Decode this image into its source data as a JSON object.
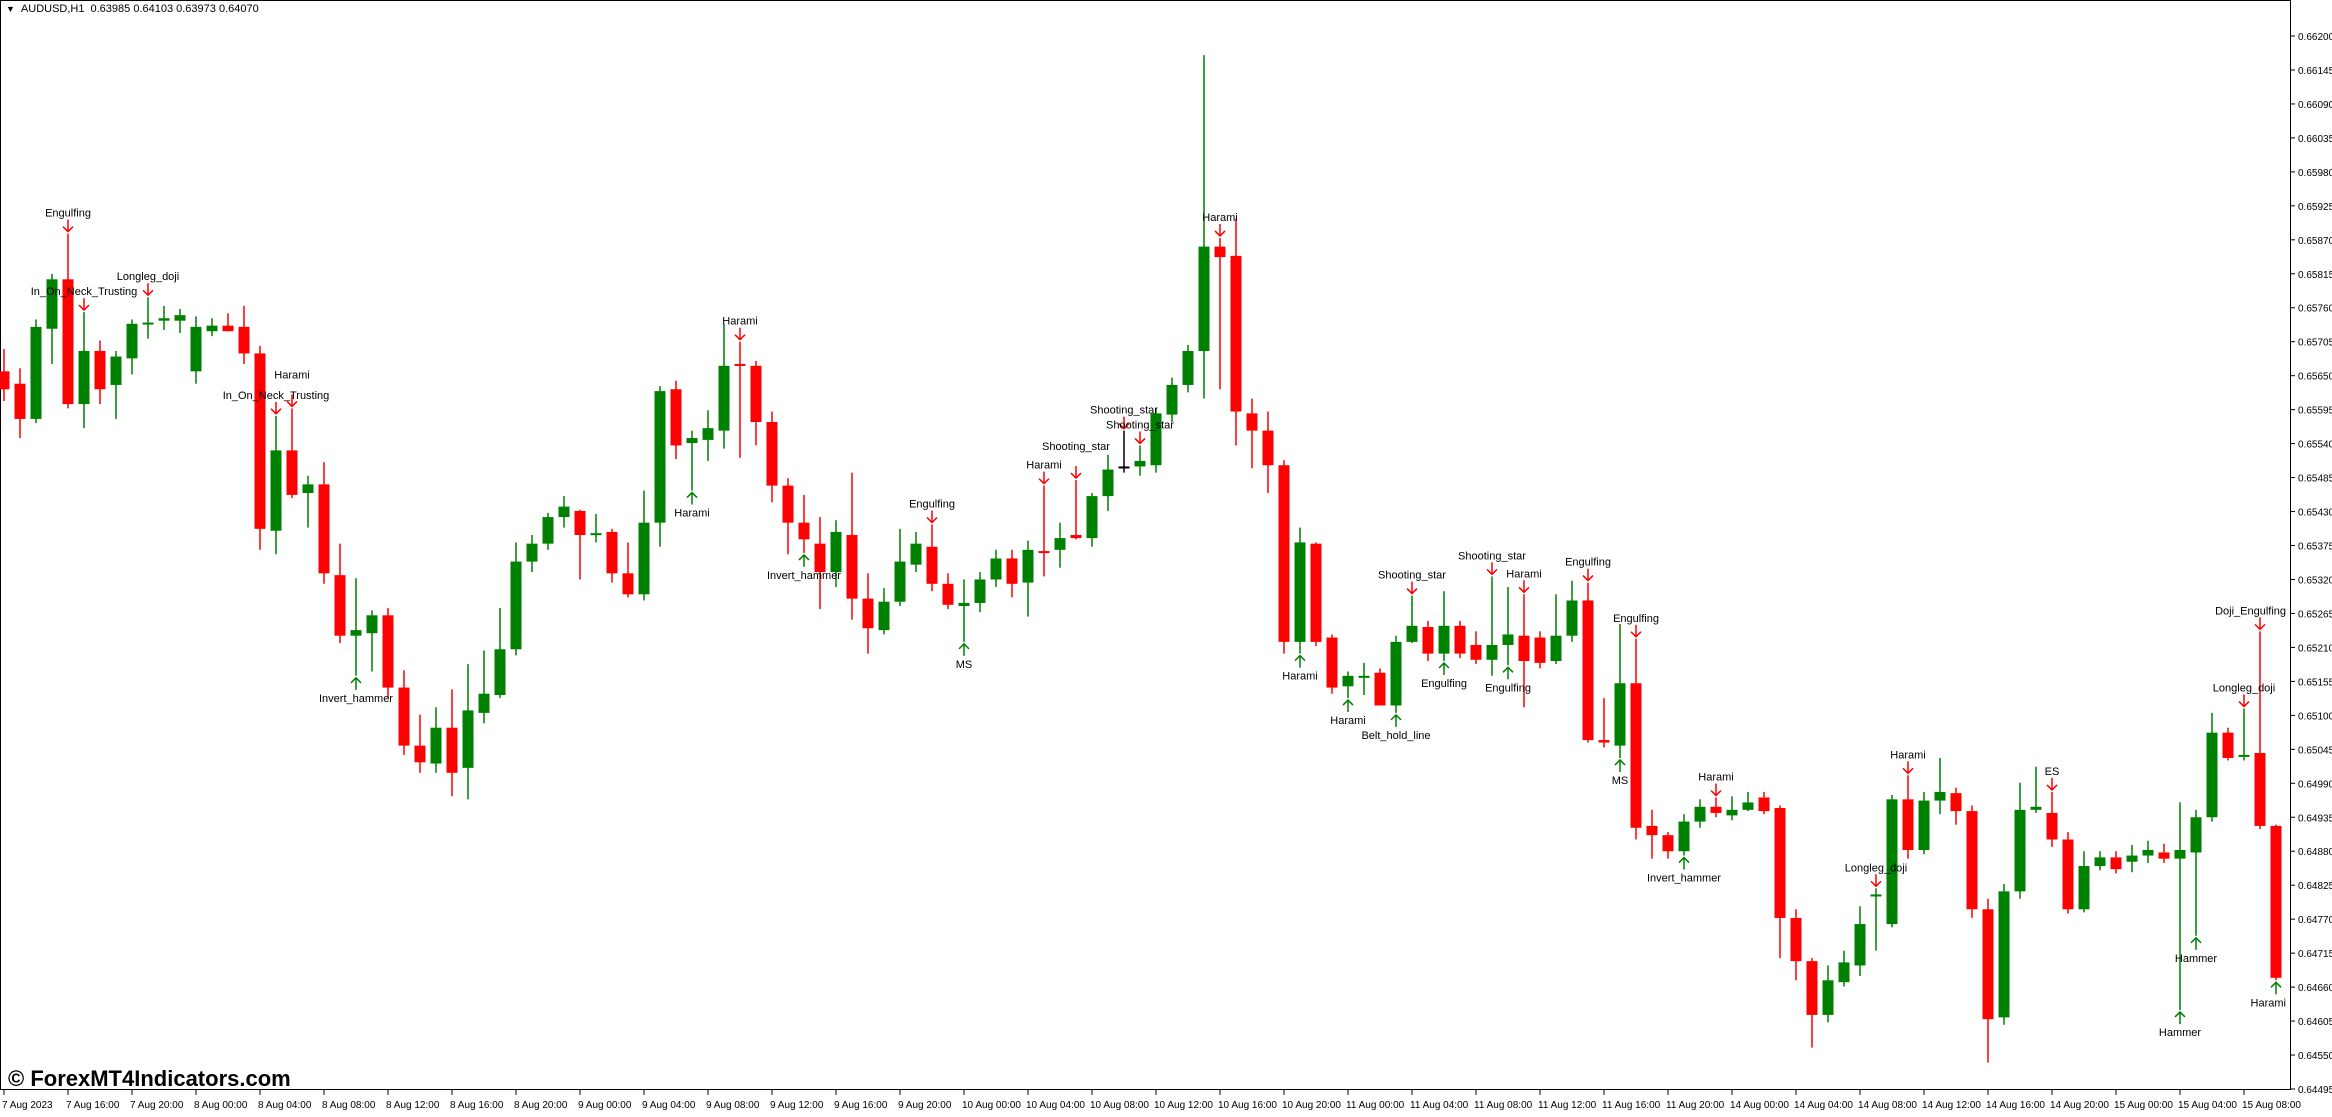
{
  "header": {
    "symbol": "AUDUSD,H1",
    "ohlc": "0.63985 0.64103 0.63973 0.64070",
    "icon": "triangle-down-icon"
  },
  "watermark": "© ForexMT4Indicators.com",
  "colors": {
    "bull": "#008000",
    "bear": "#ff0000",
    "doji": "#000000",
    "axis": "#000000",
    "text": "#000000"
  },
  "chart_data": {
    "type": "candlestick",
    "title": "AUDUSD,H1",
    "ylim": [
      0.64495,
      0.662
    ],
    "grid": false,
    "y_ticks": [
      "0.66200",
      "0.66145",
      "0.66090",
      "0.66035",
      "0.65980",
      "0.65925",
      "0.65870",
      "0.65815",
      "0.65760",
      "0.65705",
      "0.65650",
      "0.65595",
      "0.65540",
      "0.65485",
      "0.65430",
      "0.65375",
      "0.65320",
      "0.65265",
      "0.65210",
      "0.65155",
      "0.65100",
      "0.65045",
      "0.64990",
      "0.64935",
      "0.64880",
      "0.64825",
      "0.64770",
      "0.64715",
      "0.64660",
      "0.64605",
      "0.64550",
      "0.64495"
    ],
    "x_ticks": [
      {
        "bar": 0,
        "label": "7 Aug 2023"
      },
      {
        "bar": 4,
        "label": "7 Aug 16:00"
      },
      {
        "bar": 8,
        "label": "7 Aug 20:00"
      },
      {
        "bar": 12,
        "label": "8 Aug 00:00"
      },
      {
        "bar": 16,
        "label": "8 Aug 04:00"
      },
      {
        "bar": 20,
        "label": "8 Aug 08:00"
      },
      {
        "bar": 24,
        "label": "8 Aug 12:00"
      },
      {
        "bar": 28,
        "label": "8 Aug 16:00"
      },
      {
        "bar": 32,
        "label": "8 Aug 20:00"
      },
      {
        "bar": 36,
        "label": "9 Aug 00:00"
      },
      {
        "bar": 40,
        "label": "9 Aug 04:00"
      },
      {
        "bar": 44,
        "label": "9 Aug 08:00"
      },
      {
        "bar": 48,
        "label": "9 Aug 12:00"
      },
      {
        "bar": 52,
        "label": "9 Aug 16:00"
      },
      {
        "bar": 56,
        "label": "9 Aug 20:00"
      },
      {
        "bar": 60,
        "label": "10 Aug 00:00"
      },
      {
        "bar": 64,
        "label": "10 Aug 04:00"
      },
      {
        "bar": 68,
        "label": "10 Aug 08:00"
      },
      {
        "bar": 72,
        "label": "10 Aug 12:00"
      },
      {
        "bar": 76,
        "label": "10 Aug 16:00"
      },
      {
        "bar": 80,
        "label": "10 Aug 20:00"
      },
      {
        "bar": 84,
        "label": "11 Aug 00:00"
      },
      {
        "bar": 88,
        "label": "11 Aug 04:00"
      },
      {
        "bar": 92,
        "label": "11 Aug 08:00"
      },
      {
        "bar": 96,
        "label": "11 Aug 12:00"
      },
      {
        "bar": 100,
        "label": "11 Aug 16:00"
      },
      {
        "bar": 104,
        "label": "11 Aug 20:00"
      },
      {
        "bar": 108,
        "label": "14 Aug 00:00"
      },
      {
        "bar": 112,
        "label": "14 Aug 04:00"
      },
      {
        "bar": 116,
        "label": "14 Aug 08:00"
      },
      {
        "bar": 120,
        "label": "14 Aug 12:00"
      },
      {
        "bar": 124,
        "label": "14 Aug 16:00"
      },
      {
        "bar": 128,
        "label": "14 Aug 20:00"
      },
      {
        "bar": 132,
        "label": "15 Aug 00:00"
      },
      {
        "bar": 136,
        "label": "15 Aug 04:00"
      },
      {
        "bar": 140,
        "label": "15 Aug 08:00"
      }
    ],
    "candles": [
      [
        0.65657,
        0.65693,
        0.65609,
        0.65628
      ],
      [
        0.65637,
        0.65662,
        0.65549,
        0.6558
      ],
      [
        0.6558,
        0.65741,
        0.65573,
        0.65729
      ],
      [
        0.65726,
        0.65815,
        0.65669,
        0.65806
      ],
      [
        0.65806,
        0.6588,
        0.65597,
        0.65604
      ],
      [
        0.65604,
        0.65753,
        0.65565,
        0.6569
      ],
      [
        0.6569,
        0.65707,
        0.65604,
        0.65628
      ],
      [
        0.65635,
        0.6569,
        0.6558,
        0.65681
      ],
      [
        0.65678,
        0.65741,
        0.65652,
        0.65734
      ],
      [
        0.65736,
        0.65777,
        0.6571,
        0.65736
      ],
      [
        0.65739,
        0.65763,
        0.65724,
        0.65743
      ],
      [
        0.65739,
        0.65758,
        0.65719,
        0.65748
      ],
      [
        0.65657,
        0.65746,
        0.65637,
        0.65729
      ],
      [
        0.65722,
        0.65743,
        0.65714,
        0.65731
      ],
      [
        0.65731,
        0.65751,
        0.65722,
        0.65722
      ],
      [
        0.65729,
        0.65763,
        0.65669,
        0.65686
      ],
      [
        0.65686,
        0.65698,
        0.65368,
        0.65402
      ],
      [
        0.65399,
        0.65585,
        0.65361,
        0.65529
      ],
      [
        0.65529,
        0.65597,
        0.65452,
        0.65457
      ],
      [
        0.6546,
        0.65488,
        0.65404,
        0.65474
      ],
      [
        0.65474,
        0.6551,
        0.65313,
        0.6533
      ],
      [
        0.65327,
        0.65378,
        0.65217,
        0.65229
      ],
      [
        0.65229,
        0.65322,
        0.65164,
        0.65238
      ],
      [
        0.65233,
        0.6527,
        0.65171,
        0.65262
      ],
      [
        0.65262,
        0.65274,
        0.65128,
        0.65145
      ],
      [
        0.65145,
        0.65173,
        0.65036,
        0.65051
      ],
      [
        0.65051,
        0.65101,
        0.65007,
        0.65024
      ],
      [
        0.65022,
        0.65113,
        0.65007,
        0.6508
      ],
      [
        0.6508,
        0.65142,
        0.64969,
        0.65007
      ],
      [
        0.65015,
        0.65183,
        0.64964,
        0.65108
      ],
      [
        0.65104,
        0.65205,
        0.65087,
        0.65135
      ],
      [
        0.65133,
        0.65274,
        0.65128,
        0.65207
      ],
      [
        0.65207,
        0.6538,
        0.65197,
        0.65349
      ],
      [
        0.65349,
        0.65392,
        0.65332,
        0.65378
      ],
      [
        0.65378,
        0.65428,
        0.65368,
        0.65421
      ],
      [
        0.65421,
        0.65455,
        0.65404,
        0.65438
      ],
      [
        0.65431,
        0.65433,
        0.6532,
        0.65392
      ],
      [
        0.65392,
        0.65426,
        0.6538,
        0.65395
      ],
      [
        0.65397,
        0.65402,
        0.65315,
        0.6533
      ],
      [
        0.6533,
        0.6538,
        0.65291,
        0.65296
      ],
      [
        0.65296,
        0.65464,
        0.65286,
        0.65412
      ],
      [
        0.65412,
        0.65633,
        0.65373,
        0.65625
      ],
      [
        0.65628,
        0.65642,
        0.65515,
        0.65537
      ],
      [
        0.65541,
        0.65561,
        0.65464,
        0.65549
      ],
      [
        0.65546,
        0.65594,
        0.65512,
        0.65565
      ],
      [
        0.65561,
        0.65734,
        0.65532,
        0.65666
      ],
      [
        0.65669,
        0.65705,
        0.65517,
        0.65666
      ],
      [
        0.65666,
        0.65674,
        0.65537,
        0.65575
      ],
      [
        0.65575,
        0.65592,
        0.65445,
        0.65472
      ],
      [
        0.65472,
        0.65484,
        0.65361,
        0.65412
      ],
      [
        0.65412,
        0.65457,
        0.65363,
        0.65385
      ],
      [
        0.65378,
        0.65421,
        0.65272,
        0.65332
      ],
      [
        0.65332,
        0.65416,
        0.65308,
        0.65397
      ],
      [
        0.65392,
        0.65493,
        0.65255,
        0.65289
      ],
      [
        0.65289,
        0.6533,
        0.652,
        0.65241
      ],
      [
        0.65238,
        0.65306,
        0.65231,
        0.65284
      ],
      [
        0.65284,
        0.65402,
        0.65277,
        0.65349
      ],
      [
        0.65344,
        0.65397,
        0.65332,
        0.65378
      ],
      [
        0.65373,
        0.65409,
        0.65301,
        0.65313
      ],
      [
        0.65313,
        0.6533,
        0.65272,
        0.65279
      ],
      [
        0.65277,
        0.6532,
        0.65219,
        0.65282
      ],
      [
        0.65282,
        0.65332,
        0.65267,
        0.6532
      ],
      [
        0.6532,
        0.65368,
        0.65308,
        0.65354
      ],
      [
        0.65354,
        0.65368,
        0.65291,
        0.65313
      ],
      [
        0.65315,
        0.65383,
        0.6526,
        0.65368
      ],
      [
        0.65366,
        0.65472,
        0.65325,
        0.65363
      ],
      [
        0.65368,
        0.65412,
        0.65339,
        0.65387
      ],
      [
        0.65392,
        0.65481,
        0.65385,
        0.65387
      ],
      [
        0.65387,
        0.6546,
        0.65373,
        0.65455
      ],
      [
        0.65455,
        0.65522,
        0.65431,
        0.65498
      ],
      [
        0.65503,
        0.65561,
        0.65493,
        0.65503
      ],
      [
        0.65503,
        0.65537,
        0.65488,
        0.65512
      ],
      [
        0.65505,
        0.65597,
        0.65493,
        0.65589
      ],
      [
        0.65587,
        0.65647,
        0.65575,
        0.65635
      ],
      [
        0.65635,
        0.657,
        0.65623,
        0.6569
      ],
      [
        0.6569,
        0.66169,
        0.65613,
        0.65859
      ],
      [
        0.65859,
        0.65873,
        0.65628,
        0.65842
      ],
      [
        0.65844,
        0.65904,
        0.65537,
        0.65592
      ],
      [
        0.65589,
        0.65613,
        0.655,
        0.65561
      ],
      [
        0.65561,
        0.65592,
        0.6546,
        0.65505
      ],
      [
        0.65505,
        0.65513,
        0.652,
        0.65219
      ],
      [
        0.65219,
        0.65404,
        0.652,
        0.6538
      ],
      [
        0.65378,
        0.6538,
        0.65212,
        0.65219
      ],
      [
        0.65226,
        0.65231,
        0.65135,
        0.65145
      ],
      [
        0.65147,
        0.65171,
        0.65128,
        0.65164
      ],
      [
        0.65164,
        0.65185,
        0.65133,
        0.65164
      ],
      [
        0.65169,
        0.65176,
        0.65116,
        0.65116
      ],
      [
        0.65116,
        0.65229,
        0.65104,
        0.65219
      ],
      [
        0.65219,
        0.65294,
        0.65217,
        0.65245
      ],
      [
        0.65243,
        0.65253,
        0.65188,
        0.652
      ],
      [
        0.652,
        0.65301,
        0.65188,
        0.65245
      ],
      [
        0.65245,
        0.65253,
        0.65193,
        0.652
      ],
      [
        0.65214,
        0.65236,
        0.65183,
        0.6519
      ],
      [
        0.6519,
        0.65325,
        0.65164,
        0.65214
      ],
      [
        0.65214,
        0.65308,
        0.65181,
        0.65231
      ],
      [
        0.65229,
        0.65296,
        0.65113,
        0.65188
      ],
      [
        0.65226,
        0.65236,
        0.65176,
        0.65185
      ],
      [
        0.65188,
        0.65296,
        0.65183,
        0.65229
      ],
      [
        0.65229,
        0.65318,
        0.65219,
        0.65286
      ],
      [
        0.65286,
        0.65315,
        0.65056,
        0.6506
      ],
      [
        0.6506,
        0.65128,
        0.65048,
        0.65056
      ],
      [
        0.65051,
        0.65248,
        0.65031,
        0.65152
      ],
      [
        0.65152,
        0.65224,
        0.64899,
        0.64918
      ],
      [
        0.64921,
        0.64947,
        0.64868,
        0.64906
      ],
      [
        0.64906,
        0.64911,
        0.64868,
        0.6488
      ],
      [
        0.6488,
        0.6494,
        0.64873,
        0.64928
      ],
      [
        0.64928,
        0.64964,
        0.64918,
        0.64952
      ],
      [
        0.64952,
        0.64967,
        0.64935,
        0.64942
      ],
      [
        0.64938,
        0.64969,
        0.6493,
        0.64947
      ],
      [
        0.64947,
        0.64976,
        0.64945,
        0.64959
      ],
      [
        0.64967,
        0.64976,
        0.6494,
        0.64945
      ],
      [
        0.6495,
        0.64954,
        0.64707,
        0.64772
      ],
      [
        0.64772,
        0.64786,
        0.64671,
        0.64702
      ],
      [
        0.64702,
        0.64707,
        0.64562,
        0.64615
      ],
      [
        0.64615,
        0.64695,
        0.64603,
        0.64671
      ],
      [
        0.64668,
        0.64719,
        0.64661,
        0.647
      ],
      [
        0.64695,
        0.64791,
        0.64678,
        0.64762
      ],
      [
        0.6481,
        0.6482,
        0.64719,
        0.6481
      ],
      [
        0.64762,
        0.64971,
        0.64757,
        0.64964
      ],
      [
        0.64964,
        0.65003,
        0.64868,
        0.64882
      ],
      [
        0.64882,
        0.64976,
        0.64875,
        0.64962
      ],
      [
        0.64962,
        0.65031,
        0.6494,
        0.64976
      ],
      [
        0.64974,
        0.64983,
        0.64923,
        0.64945
      ],
      [
        0.64945,
        0.64954,
        0.64772,
        0.64786
      ],
      [
        0.64786,
        0.64803,
        0.64538,
        0.64608
      ],
      [
        0.64611,
        0.64827,
        0.64599,
        0.64815
      ],
      [
        0.64815,
        0.64991,
        0.64803,
        0.64947
      ],
      [
        0.64947,
        0.65017,
        0.64942,
        0.64952
      ],
      [
        0.64942,
        0.64976,
        0.64887,
        0.64899
      ],
      [
        0.64899,
        0.64911,
        0.64779,
        0.64786
      ],
      [
        0.64786,
        0.6488,
        0.64781,
        0.64856
      ],
      [
        0.64856,
        0.6488,
        0.64849,
        0.6487
      ],
      [
        0.6487,
        0.6488,
        0.64844,
        0.64851
      ],
      [
        0.64863,
        0.6489,
        0.64846,
        0.64873
      ],
      [
        0.64873,
        0.64897,
        0.64861,
        0.64882
      ],
      [
        0.64878,
        0.64892,
        0.64861,
        0.64868
      ],
      [
        0.64868,
        0.64959,
        0.64623,
        0.64882
      ],
      [
        0.64878,
        0.64947,
        0.64743,
        0.64935
      ],
      [
        0.64935,
        0.65104,
        0.64928,
        0.65072
      ],
      [
        0.65072,
        0.6508,
        0.65027,
        0.65031
      ],
      [
        0.65036,
        0.65111,
        0.65027,
        0.65036
      ],
      [
        0.65039,
        0.65236,
        0.64916,
        0.64921
      ],
      [
        0.64921,
        0.64923,
        0.64671,
        0.64675
      ]
    ],
    "doji_black_bars": [
      70
    ],
    "patterns": [
      {
        "bar": 4,
        "label": "Engulfing",
        "dir": "down"
      },
      {
        "bar": 5,
        "label": "In_On_Neck_Trusting",
        "dir": "down"
      },
      {
        "bar": 9,
        "label": "Longleg_doji",
        "dir": "down"
      },
      {
        "bar": 17,
        "label": "In_On_Neck_Trusting",
        "dir": "down"
      },
      {
        "bar": 18,
        "label": "Harami",
        "dir": "down"
      },
      {
        "bar": 22,
        "label": "Invert_hammer",
        "dir": "up"
      },
      {
        "bar": 43,
        "label": "Harami",
        "dir": "up"
      },
      {
        "bar": 46,
        "label": "Harami",
        "dir": "down"
      },
      {
        "bar": 50,
        "label": "Invert_hammer",
        "dir": "up"
      },
      {
        "bar": 58,
        "label": "Engulfing",
        "dir": "down"
      },
      {
        "bar": 60,
        "label": "MS",
        "dir": "up"
      },
      {
        "bar": 65,
        "label": "Harami",
        "dir": "down"
      },
      {
        "bar": 67,
        "label": "Shooting_star",
        "dir": "down"
      },
      {
        "bar": 70,
        "label": "Shooting_star",
        "dir": "down"
      },
      {
        "bar": 71,
        "label": "Shooting_star",
        "dir": "down"
      },
      {
        "bar": 76,
        "label": "Harami",
        "dir": "down"
      },
      {
        "bar": 81,
        "label": "Harami",
        "dir": "up"
      },
      {
        "bar": 84,
        "label": "Harami",
        "dir": "up"
      },
      {
        "bar": 87,
        "label": "Belt_hold_line",
        "dir": "up"
      },
      {
        "bar": 88,
        "label": "Shooting_star",
        "dir": "down"
      },
      {
        "bar": 90,
        "label": "Engulfing",
        "dir": "up"
      },
      {
        "bar": 93,
        "label": "Shooting_star",
        "dir": "down"
      },
      {
        "bar": 94,
        "label": "Engulfing",
        "dir": "up"
      },
      {
        "bar": 95,
        "label": "Harami",
        "dir": "down"
      },
      {
        "bar": 99,
        "label": "Engulfing",
        "dir": "down"
      },
      {
        "bar": 101,
        "label": "MS",
        "dir": "up"
      },
      {
        "bar": 102,
        "label": "Engulfing",
        "dir": "down"
      },
      {
        "bar": 105,
        "label": "Invert_hammer",
        "dir": "up"
      },
      {
        "bar": 107,
        "label": "Harami",
        "dir": "down"
      },
      {
        "bar": 117,
        "label": "Longleg_doji",
        "dir": "down"
      },
      {
        "bar": 119,
        "label": "Harami",
        "dir": "down"
      },
      {
        "bar": 128,
        "label": "ES",
        "dir": "down"
      },
      {
        "bar": 136,
        "label": "Hammer",
        "dir": "up"
      },
      {
        "bar": 137,
        "label": "Hammer",
        "dir": "up"
      },
      {
        "bar": 140,
        "label": "Longleg_doji",
        "dir": "down"
      },
      {
        "bar": 141,
        "label": "Doji_Engulfing",
        "dir": "down"
      },
      {
        "bar": 142,
        "label": "Harami",
        "dir": "up"
      }
    ]
  }
}
